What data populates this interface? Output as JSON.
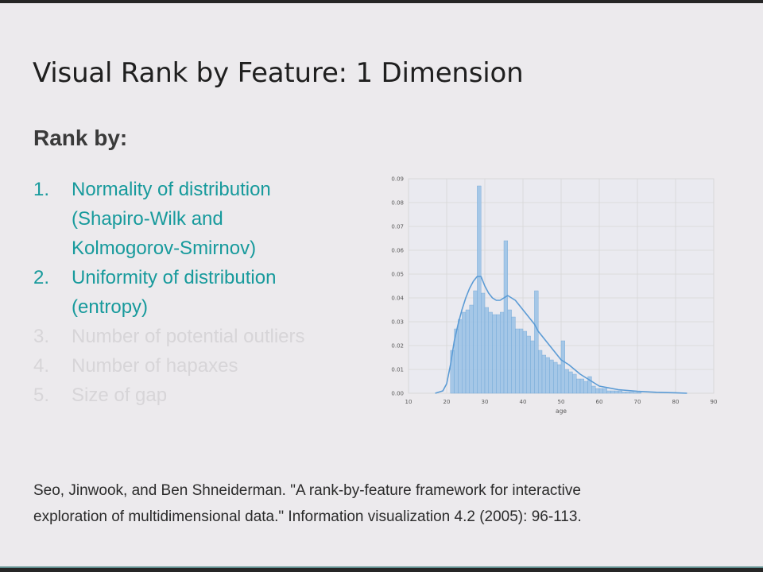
{
  "slide": {
    "title": "Visual Rank by Feature: 1 Dimension",
    "subtitle": "Rank by:"
  },
  "rank_list": [
    {
      "num": "1.",
      "lines": [
        "Normality of distribution",
        "(Shapiro-Wilk and",
        "Kolmogorov-Smirnov)"
      ],
      "state": "active"
    },
    {
      "num": "2.",
      "lines": [
        "Uniformity of distribution",
        "(entropy)"
      ],
      "state": "active"
    },
    {
      "num": "3.",
      "lines": [
        "Number of potential outliers"
      ],
      "state": "muted"
    },
    {
      "num": "4.",
      "lines": [
        "Number of hapaxes"
      ],
      "state": "muted"
    },
    {
      "num": "5.",
      "lines": [
        "Size of gap"
      ],
      "state": "muted"
    }
  ],
  "citation": {
    "line1": "Seo, Jinwook, and Ben Shneiderman. \"A rank-by-feature framework for interactive",
    "line2": "exploration of multidimensional data.\" Information visualization 4.2 (2005): 96-113."
  },
  "colors": {
    "accent": "#179a9c",
    "muted": "#d7d5d8",
    "bar_fill": "#9dc3e6",
    "bar_stroke": "#6fa6d6",
    "kde": "#5b9bd5"
  },
  "chart_data": {
    "type": "bar",
    "xlabel": "age",
    "ylabel": "",
    "xlim": [
      10,
      90
    ],
    "ylim": [
      0,
      0.09
    ],
    "xticks": [
      "10",
      "20",
      "30",
      "40",
      "50",
      "60",
      "70",
      "80",
      "90"
    ],
    "yticks": [
      "0.00",
      "0.01",
      "0.02",
      "0.03",
      "0.04",
      "0.05",
      "0.06",
      "0.07",
      "0.08",
      "0.09"
    ],
    "grid": true,
    "bin_width": 1,
    "bin_start": 21,
    "histogram_values": [
      0.018,
      0.027,
      0.031,
      0.034,
      0.035,
      0.037,
      0.043,
      0.087,
      0.042,
      0.036,
      0.034,
      0.033,
      0.033,
      0.034,
      0.064,
      0.035,
      0.032,
      0.027,
      0.027,
      0.026,
      0.024,
      0.022,
      0.043,
      0.018,
      0.016,
      0.015,
      0.014,
      0.013,
      0.012,
      0.022,
      0.01,
      0.009,
      0.008,
      0.006,
      0.006,
      0.005,
      0.007,
      0.003,
      0.002,
      0.002,
      0.002,
      0.001,
      0.001,
      0.001,
      0.001,
      0.0005,
      0.0005,
      0.0005,
      0.0003,
      0.0003
    ],
    "kde": {
      "x": [
        17,
        19,
        20,
        21,
        22,
        23,
        24,
        25,
        26,
        27,
        28,
        29,
        30,
        31,
        32,
        33,
        34,
        35,
        36,
        37,
        38,
        39,
        40,
        41,
        42,
        43,
        44,
        45,
        46,
        48,
        50,
        52,
        55,
        58,
        60,
        65,
        70,
        75,
        80,
        83
      ],
      "y": [
        0.0,
        0.001,
        0.004,
        0.012,
        0.022,
        0.029,
        0.035,
        0.04,
        0.044,
        0.047,
        0.049,
        0.049,
        0.045,
        0.042,
        0.04,
        0.039,
        0.039,
        0.04,
        0.041,
        0.04,
        0.039,
        0.037,
        0.035,
        0.033,
        0.031,
        0.029,
        0.026,
        0.024,
        0.022,
        0.018,
        0.014,
        0.012,
        0.008,
        0.005,
        0.003,
        0.0015,
        0.0008,
        0.0004,
        0.0002,
        0.0
      ]
    }
  }
}
